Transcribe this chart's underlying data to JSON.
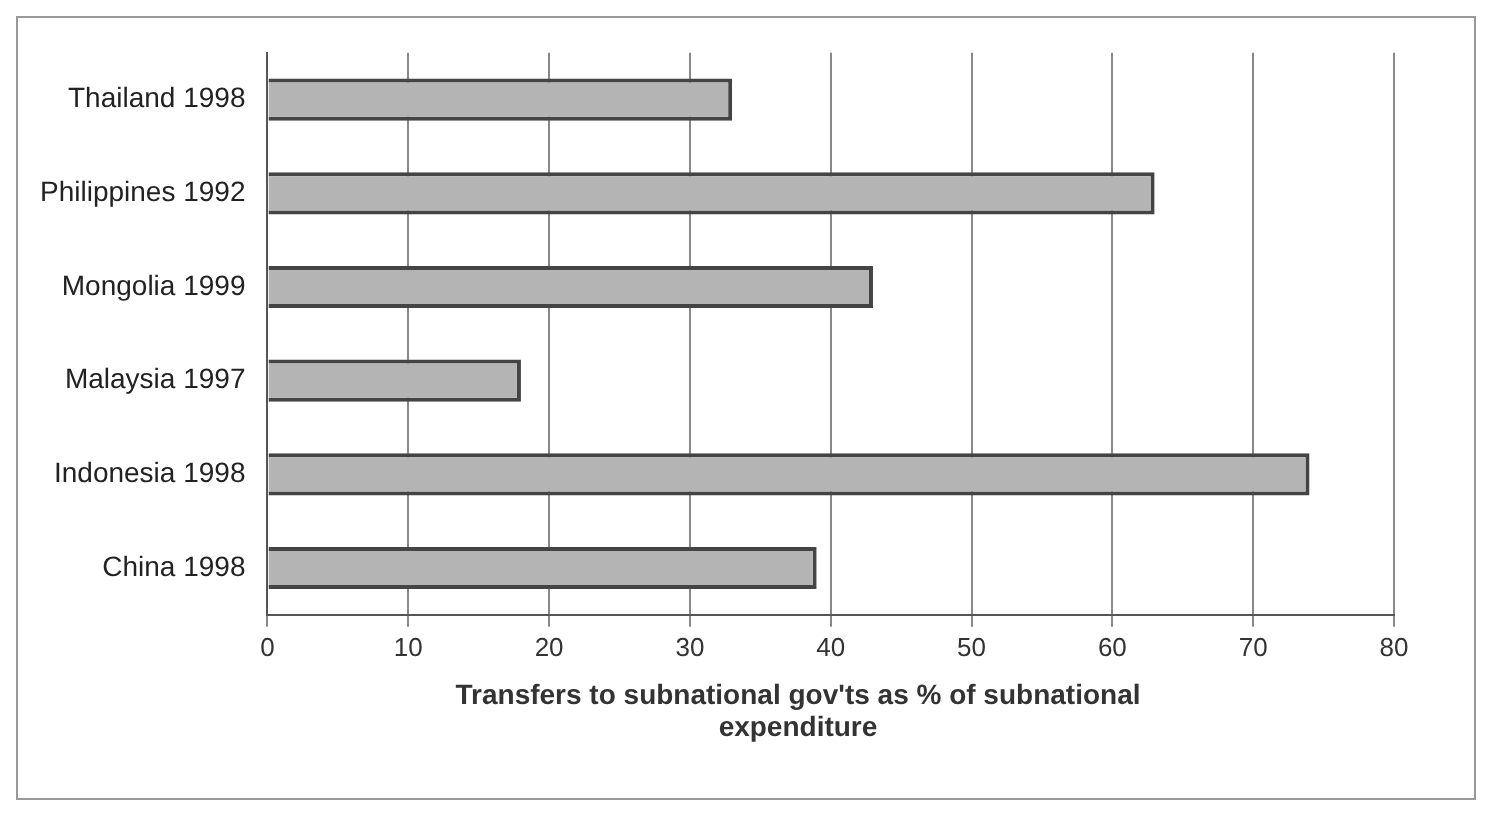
{
  "chart_data": {
    "type": "bar",
    "orientation": "horizontal",
    "categories": [
      "Thailand 1998",
      "Philippines 1992",
      "Mongolia 1999",
      "Malaysia 1997",
      "Indonesia 1998",
      "China 1998"
    ],
    "values": [
      33,
      63,
      43,
      18,
      74,
      39
    ],
    "color": "#b4b4b4",
    "xlim": [
      0,
      80
    ],
    "xticks": [
      0,
      10,
      20,
      30,
      40,
      50,
      60,
      70,
      80
    ],
    "grid": "x",
    "xlabel": "Transfers to subnational gov'ts as % of subnational expenditure"
  }
}
